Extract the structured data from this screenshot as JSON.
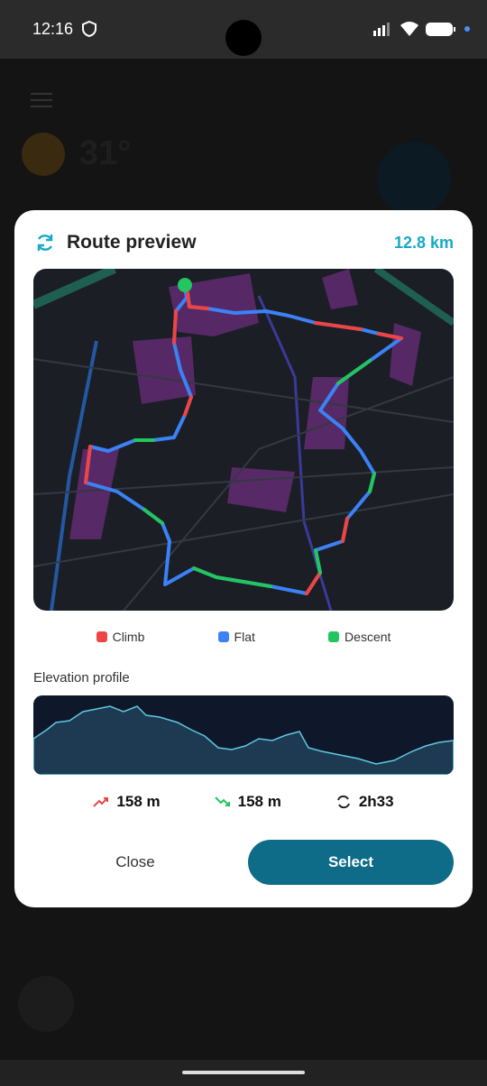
{
  "status_bar": {
    "time": "12:16"
  },
  "background": {
    "temperature": "31°"
  },
  "dialog": {
    "title": "Route preview",
    "distance": "12.8 km",
    "legend": [
      "Climb",
      "Flat",
      "Descent"
    ],
    "elevation_label": "Elevation profile",
    "stats": {
      "ascent": "158 m",
      "descent": "158 m",
      "duration": "2h33"
    },
    "buttons": {
      "close": "Close",
      "select": "Select"
    }
  }
}
